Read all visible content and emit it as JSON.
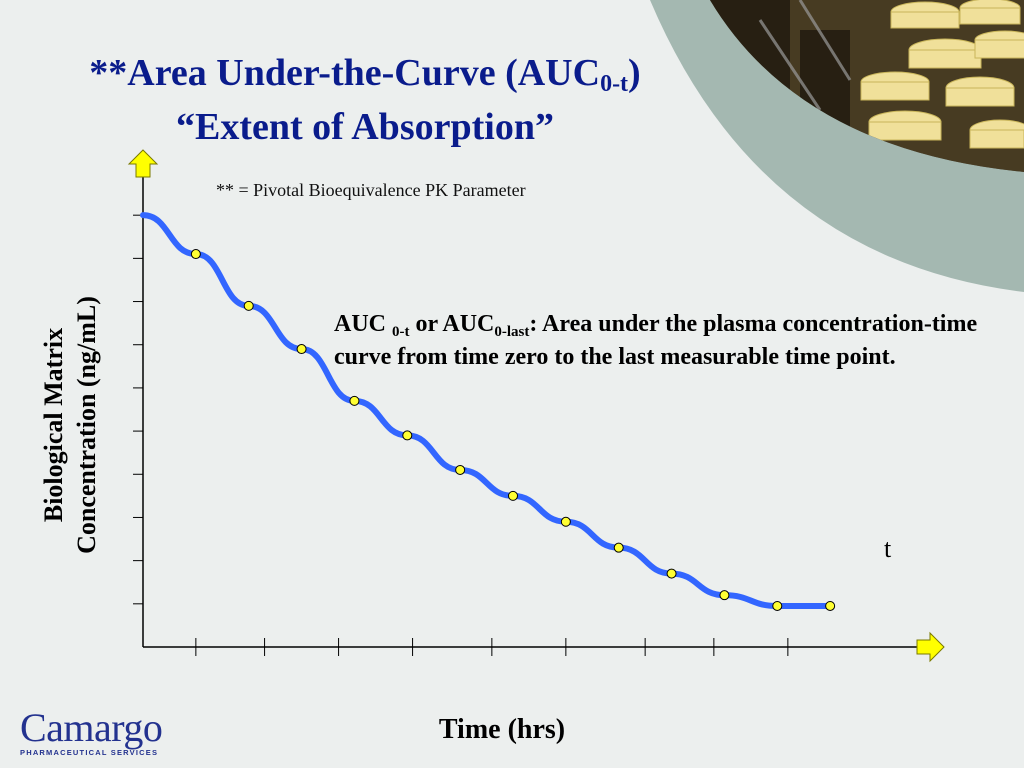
{
  "title": {
    "prefix": "**",
    "line1_main": "Area Under-the-Curve (AUC",
    "line1_sub": "0-t",
    "line1_end": ")",
    "line2": "“Extent of Absorption”"
  },
  "footnote": "** = Pivotal Bioequivalence PK Parameter",
  "definition": {
    "auc1": "AUC ",
    "sub1": "0-t",
    "or_auc": "  or AUC",
    "sub2": "0-last",
    "rest": ":   Area under the plasma concentration-time curve from time zero to the last measurable time point."
  },
  "axes": {
    "ylabel_line1": "Biological Matrix",
    "ylabel_line2": "Concentration (ng/mL)",
    "xlabel": "Time (hrs)"
  },
  "t_marker": "t",
  "logo": {
    "name": "Camargo",
    "subtitle": "PHARMACEUTICAL SERVICES"
  },
  "colors": {
    "title": "#0a1c8c",
    "curve": "#3366ff",
    "points": "#ffff33",
    "arrows": "#ffff00",
    "swoosh": "#a4b8b1",
    "background": "#ecefee"
  },
  "chart_data": {
    "type": "line",
    "x": [
      1,
      2,
      3,
      4,
      5,
      6,
      7,
      8,
      9,
      10,
      11,
      12,
      13
    ],
    "y": [
      9.1,
      7.9,
      6.9,
      5.7,
      4.9,
      4.1,
      3.5,
      2.9,
      2.3,
      1.7,
      1.2,
      0.95,
      0.95
    ],
    "xlim": [
      0,
      14
    ],
    "ylim": [
      0,
      11
    ],
    "grid": false,
    "ticks_labeled": false
  }
}
